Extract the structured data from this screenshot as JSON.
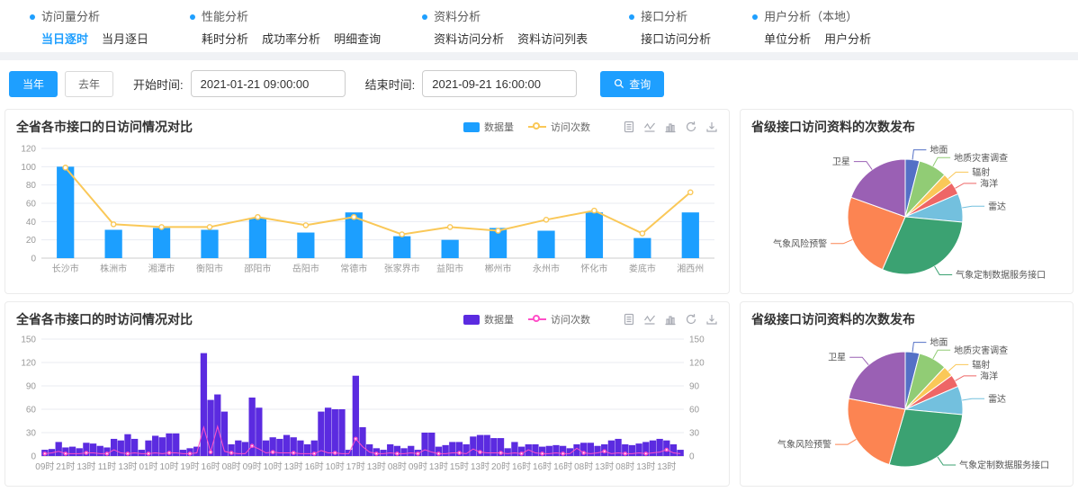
{
  "nav": {
    "groups": [
      {
        "title": "访问量分析",
        "items": [
          {
            "label": "当日逐时",
            "active": true
          },
          {
            "label": "当月逐日",
            "active": false
          }
        ]
      },
      {
        "title": "性能分析",
        "items": [
          {
            "label": "耗时分析",
            "active": false
          },
          {
            "label": "成功率分析",
            "active": false
          },
          {
            "label": "明细查询",
            "active": false
          }
        ]
      },
      {
        "title": "资料分析",
        "items": [
          {
            "label": "资料访问分析",
            "active": false
          },
          {
            "label": "资料访问列表",
            "active": false
          }
        ]
      },
      {
        "title": "接口分析",
        "items": [
          {
            "label": "接口访问分析",
            "active": false
          }
        ]
      },
      {
        "title": "用户分析（本地）",
        "items": [
          {
            "label": "单位分析",
            "active": false
          },
          {
            "label": "用户分析",
            "active": false
          }
        ]
      }
    ]
  },
  "toolbar": {
    "this_year_label": "当年",
    "last_year_label": "去年",
    "start_label": "开始时间:",
    "start_value": "2021-01-21 09:00:00",
    "end_label": "结束时间:",
    "end_value": "2021-09-21 16:00:00",
    "search_label": "查询"
  },
  "colors": {
    "accent": "#1E9FFF",
    "daily_bar": "#1C9FFF",
    "daily_line": "#FAC858",
    "hourly_bar": "#5B2BE0",
    "hourly_line": "#FF4FC8",
    "axis_text": "#999999",
    "grid": "#e8ebf2"
  },
  "toolbox_icons": [
    "data-view",
    "line-chart",
    "bar-chart",
    "refresh",
    "download"
  ],
  "chart_data": [
    {
      "type": "bar",
      "title": "全省各市接口的日访问情况对比",
      "legend": [
        {
          "name": "数据量",
          "color": "#1C9FFF"
        },
        {
          "name": "访问次数",
          "color": "#FAC858"
        }
      ],
      "categories": [
        "长沙市",
        "株洲市",
        "湘潭市",
        "衡阳市",
        "邵阳市",
        "岳阳市",
        "常德市",
        "张家界市",
        "益阳市",
        "郴州市",
        "永州市",
        "怀化市",
        "娄底市",
        "湘西州"
      ],
      "series": [
        {
          "name": "数据量",
          "type": "bar",
          "values": [
            100,
            31,
            33,
            31,
            44,
            28,
            50,
            24,
            20,
            33,
            30,
            50,
            22,
            50
          ]
        },
        {
          "name": "访问次数",
          "type": "line",
          "values": [
            99,
            37,
            34,
            34,
            45,
            36,
            45,
            26,
            34,
            30,
            42,
            52,
            27,
            72
          ]
        }
      ],
      "ylim": [
        0,
        120
      ],
      "ytick": 20,
      "grid": true,
      "legend_position": "top-right"
    },
    {
      "type": "bar",
      "title": "全省各市接口的时访问情况对比",
      "legend": [
        {
          "name": "数据量",
          "color": "#5B2BE0"
        },
        {
          "name": "访问次数",
          "color": "#FF4FC8"
        }
      ],
      "categories": [
        "09时",
        "21时",
        "13时",
        "11时",
        "13时",
        "01时",
        "10时",
        "19时",
        "16时",
        "08时",
        "09时",
        "10时",
        "13时",
        "16时",
        "10时",
        "17时",
        "13时",
        "08时",
        "09时",
        "13时",
        "15时",
        "13时",
        "20时",
        "16时",
        "16时",
        "16时",
        "08时",
        "13时",
        "08时",
        "13时",
        "13时"
      ],
      "label_every": 3,
      "series": [
        {
          "name": "数据量",
          "type": "bar",
          "values": [
            8,
            9,
            18,
            11,
            12,
            10,
            17,
            16,
            13,
            11,
            22,
            20,
            28,
            22,
            8,
            20,
            26,
            24,
            29,
            29,
            8,
            10,
            12,
            132,
            72,
            79,
            57,
            15,
            20,
            18,
            75,
            62,
            20,
            24,
            22,
            27,
            24,
            20,
            15,
            20,
            57,
            62,
            60,
            60,
            8,
            103,
            37,
            15,
            10,
            8,
            15,
            13,
            10,
            13,
            8,
            30,
            30,
            12,
            14,
            18,
            18,
            15,
            25,
            27,
            27,
            23,
            23,
            10,
            18,
            12,
            15,
            15,
            12,
            13,
            14,
            13,
            10,
            15,
            17,
            17,
            13,
            15,
            20,
            22,
            15,
            14,
            16,
            18,
            20,
            22,
            20,
            15,
            8
          ]
        },
        {
          "name": "访问次数",
          "type": "line",
          "values": [
            3,
            4,
            6,
            3,
            3,
            3,
            4,
            4,
            3,
            3,
            8,
            4,
            3,
            4,
            3,
            3,
            4,
            3,
            4,
            4,
            3,
            3,
            4,
            37,
            5,
            38,
            6,
            4,
            3,
            3,
            13,
            9,
            4,
            5,
            4,
            4,
            4,
            3,
            3,
            3,
            7,
            4,
            4,
            3,
            3,
            22,
            12,
            5,
            3,
            3,
            4,
            3,
            3,
            4,
            3,
            8,
            5,
            3,
            3,
            4,
            4,
            3,
            9,
            5,
            4,
            4,
            4,
            3,
            4,
            3,
            8,
            4,
            3,
            3,
            4,
            3,
            3,
            10,
            4,
            3,
            4,
            6,
            3,
            4,
            3,
            3,
            4,
            3,
            4,
            5,
            8,
            4,
            3
          ]
        }
      ],
      "ylim": [
        0,
        150
      ],
      "ytick": 30,
      "dual_axis": true,
      "grid": true,
      "legend_position": "top-right"
    },
    {
      "type": "pie",
      "title": "省级接口访问资料的次数发布",
      "slices": [
        {
          "label": "地面",
          "value": 4,
          "color": "#5470C6"
        },
        {
          "label": "地质灾害调查",
          "value": 8,
          "color": "#91CC75"
        },
        {
          "label": "辐射",
          "value": 3,
          "color": "#FAC858"
        },
        {
          "label": "海洋",
          "value": 3.5,
          "color": "#EE6666"
        },
        {
          "label": "雷达",
          "value": 8,
          "color": "#73C0DE"
        },
        {
          "label": "气象定制数据服务接口",
          "value": 30,
          "color": "#3BA272"
        },
        {
          "label": "气象风险预警",
          "value": 24,
          "color": "#FC8452"
        },
        {
          "label": "卫星",
          "value": 19.5,
          "color": "#9A60B4"
        }
      ]
    },
    {
      "type": "pie",
      "title": "省级接口访问资料的次数发布",
      "slices": [
        {
          "label": "地面",
          "value": 4,
          "color": "#5470C6"
        },
        {
          "label": "地质灾害调查",
          "value": 8,
          "color": "#91CC75"
        },
        {
          "label": "辐射",
          "value": 3,
          "color": "#FAC858"
        },
        {
          "label": "海洋",
          "value": 3.5,
          "color": "#EE6666"
        },
        {
          "label": "雷达",
          "value": 8,
          "color": "#73C0DE"
        },
        {
          "label": "气象定制数据服务接口",
          "value": 28,
          "color": "#3BA272"
        },
        {
          "label": "气象风险预警",
          "value": 23.5,
          "color": "#FC8452"
        },
        {
          "label": "卫星",
          "value": 22,
          "color": "#9A60B4"
        }
      ]
    }
  ]
}
